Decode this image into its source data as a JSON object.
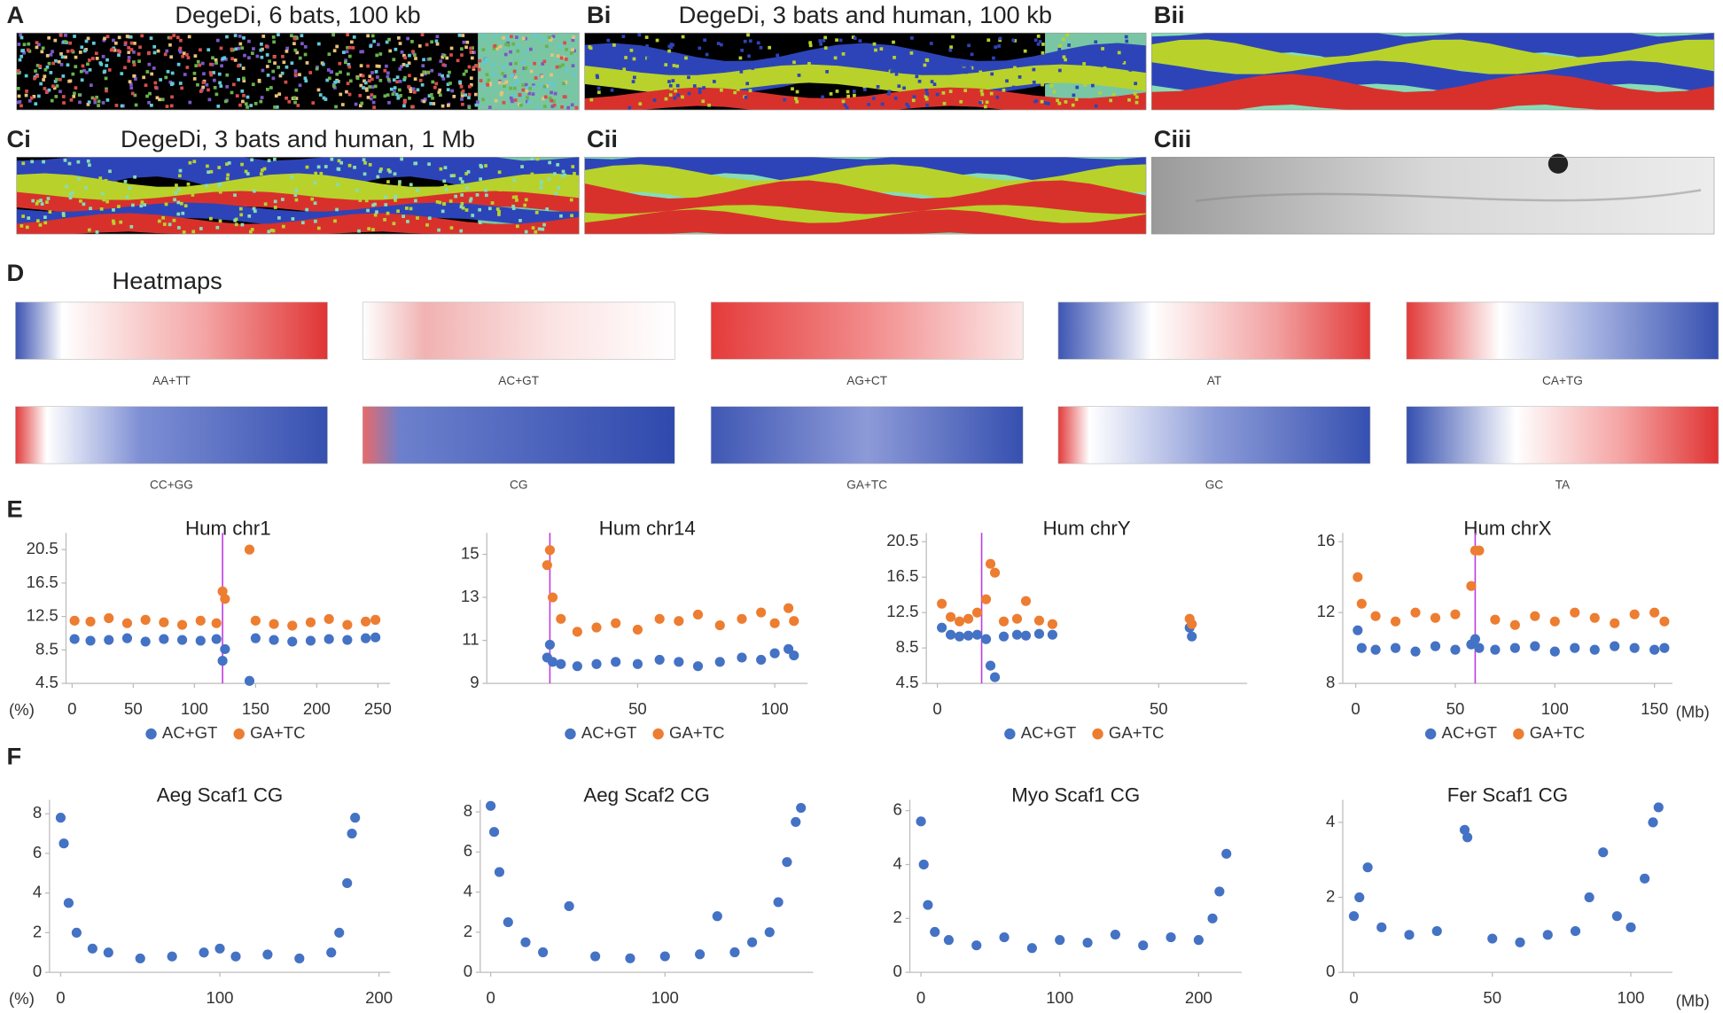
{
  "panels": [
    {
      "letter": "A",
      "title": "DegeDi, 6 bats, 100 kb"
    },
    {
      "letter": "Bi",
      "title": "DegeDi, 3 bats and human, 100 kb"
    },
    {
      "letter": "Bii"
    },
    {
      "letter": "Ci",
      "title": "DegeDi, 3 bats and human, 1 Mb"
    },
    {
      "letter": "Cii"
    },
    {
      "letter": "Ciii"
    }
  ],
  "heatmaps": {
    "letter": "D",
    "title": "Heatmaps",
    "labels": [
      "AA+TT",
      "AC+GT",
      "AG+CT",
      "AT",
      "CA+TG",
      "CC+GG",
      "CG",
      "GA+TC",
      "GC",
      "TA"
    ]
  },
  "row_E": {
    "letter": "E",
    "y_unit": "(%)",
    "x_unit": "(Mb)"
  },
  "row_F": {
    "letter": "F",
    "y_unit": "(%)",
    "x_unit": "(Mb)"
  },
  "chart_data": [
    {
      "type": "scatter",
      "title": "Hum chr1",
      "xlim": [
        -5,
        260
      ],
      "ylim": [
        4.5,
        22.5
      ],
      "xticks": [
        0,
        50,
        100,
        150,
        200,
        250
      ],
      "yticks": [
        4.5,
        8.5,
        12.5,
        16.5,
        20.5
      ],
      "marker_x": 123,
      "marker_color": "#c03ce0",
      "x": [
        2,
        15,
        30,
        45,
        60,
        75,
        90,
        105,
        118,
        123,
        125,
        145,
        150,
        165,
        180,
        195,
        210,
        225,
        240,
        248
      ],
      "series": [
        {
          "name": "AC+GT",
          "color": "#4472c4",
          "values": [
            9.8,
            9.6,
            9.7,
            9.9,
            9.5,
            9.8,
            9.7,
            9.6,
            9.8,
            7.2,
            8.6,
            4.8,
            9.9,
            9.7,
            9.5,
            9.6,
            9.8,
            9.7,
            9.9,
            10.0
          ]
        },
        {
          "name": "GA+TC",
          "color": "#ed7d31",
          "values": [
            12.0,
            11.9,
            12.3,
            11.7,
            12.1,
            11.8,
            11.5,
            12.0,
            11.7,
            15.5,
            14.6,
            20.5,
            12.0,
            11.6,
            11.4,
            11.8,
            12.2,
            11.5,
            11.9,
            12.1
          ]
        }
      ]
    },
    {
      "type": "scatter",
      "title": "Hum chr14",
      "xlim": [
        -5,
        112
      ],
      "ylim": [
        9,
        16
      ],
      "xticks": [
        50,
        100
      ],
      "yticks": [
        9,
        11,
        13,
        15
      ],
      "marker_x": 18,
      "marker_color": "#c03ce0",
      "x": [
        17,
        18,
        19,
        22,
        28,
        35,
        42,
        50,
        58,
        65,
        72,
        80,
        88,
        95,
        100,
        105,
        107
      ],
      "series": [
        {
          "name": "AC+GT",
          "color": "#4472c4",
          "values": [
            10.2,
            10.8,
            10.0,
            9.9,
            9.8,
            9.9,
            10.0,
            9.9,
            10.1,
            10.0,
            9.8,
            10.0,
            10.2,
            10.1,
            10.4,
            10.6,
            10.3
          ]
        },
        {
          "name": "GA+TC",
          "color": "#ed7d31",
          "values": [
            14.5,
            15.2,
            13.0,
            12.0,
            11.4,
            11.6,
            11.8,
            11.5,
            12.0,
            11.9,
            12.2,
            11.7,
            12.0,
            12.3,
            11.8,
            12.5,
            11.9
          ]
        }
      ]
    },
    {
      "type": "scatter",
      "title": "Hum chrY",
      "xlim": [
        -2.5,
        70
      ],
      "ylim": [
        4.5,
        21.5
      ],
      "xticks": [
        0,
        50
      ],
      "yticks": [
        4.5,
        8.5,
        12.5,
        16.5,
        20.5
      ],
      "marker_x": 10,
      "marker_color": "#c03ce0",
      "x": [
        1,
        3,
        5,
        7,
        9,
        11,
        12,
        13,
        15,
        18,
        20,
        23,
        26,
        57,
        57.5
      ],
      "series": [
        {
          "name": "AC+GT",
          "color": "#4472c4",
          "values": [
            10.8,
            10.0,
            9.8,
            9.9,
            10.0,
            9.5,
            6.5,
            5.2,
            9.8,
            10.0,
            9.9,
            10.1,
            10.0,
            10.8,
            9.8
          ]
        },
        {
          "name": "GA+TC",
          "color": "#ed7d31",
          "values": [
            13.5,
            12.0,
            11.5,
            11.8,
            12.5,
            14.0,
            18.0,
            17.0,
            11.5,
            11.8,
            13.8,
            11.6,
            11.2,
            11.8,
            11.2
          ]
        }
      ]
    },
    {
      "type": "scatter",
      "title": "Hum chrX",
      "xlim": [
        -6.5,
        159
      ],
      "ylim": [
        8,
        16.5
      ],
      "xticks": [
        0,
        50,
        100,
        150
      ],
      "yticks": [
        8,
        12,
        16
      ],
      "marker_x": 60,
      "marker_color": "#c03ce0",
      "x": [
        1,
        3,
        10,
        20,
        30,
        40,
        50,
        58,
        60,
        62,
        70,
        80,
        90,
        100,
        110,
        120,
        130,
        140,
        150,
        155
      ],
      "series": [
        {
          "name": "AC+GT",
          "color": "#4472c4",
          "values": [
            11.0,
            10.0,
            9.9,
            10.0,
            9.8,
            10.1,
            9.9,
            10.2,
            10.5,
            10.0,
            9.9,
            10.0,
            10.1,
            9.8,
            10.0,
            9.9,
            10.1,
            10.0,
            9.9,
            10.0
          ]
        },
        {
          "name": "GA+TC",
          "color": "#ed7d31",
          "values": [
            14.0,
            12.5,
            11.8,
            11.5,
            12.0,
            11.7,
            11.9,
            13.5,
            15.5,
            15.5,
            11.6,
            11.3,
            11.8,
            11.5,
            12.0,
            11.7,
            11.4,
            11.9,
            12.0,
            11.5
          ]
        }
      ]
    },
    {
      "type": "scatter",
      "title": "Aeg Scaf1 CG",
      "xlim": [
        -7,
        207
      ],
      "ylim": [
        0,
        8.7
      ],
      "xticks": [
        0,
        100,
        200
      ],
      "yticks": [
        0,
        2,
        4,
        6,
        8
      ],
      "color": "#4472c4",
      "x": [
        0,
        2,
        5,
        10,
        20,
        30,
        50,
        70,
        90,
        100,
        110,
        130,
        150,
        170,
        175,
        180,
        183,
        185
      ],
      "values": [
        7.8,
        6.5,
        3.5,
        2.0,
        1.2,
        1.0,
        0.7,
        0.8,
        1.0,
        1.2,
        0.8,
        0.9,
        0.7,
        1.0,
        2.0,
        4.5,
        7.0,
        7.8
      ]
    },
    {
      "type": "scatter",
      "title": "Aeg Scaf2 CG",
      "xlim": [
        -6,
        185
      ],
      "ylim": [
        0,
        8.6
      ],
      "xticks": [
        0,
        100
      ],
      "yticks": [
        0,
        2,
        4,
        6,
        8
      ],
      "color": "#4472c4",
      "x": [
        0,
        2,
        5,
        10,
        20,
        30,
        45,
        60,
        80,
        100,
        120,
        130,
        140,
        150,
        160,
        165,
        170,
        175,
        178
      ],
      "values": [
        8.3,
        7.0,
        5.0,
        2.5,
        1.5,
        1.0,
        3.3,
        0.8,
        0.7,
        0.8,
        0.9,
        2.8,
        1.0,
        1.5,
        2.0,
        3.5,
        5.5,
        7.5,
        8.2
      ]
    },
    {
      "type": "scatter",
      "title": "Myo Scaf1 CG",
      "xlim": [
        -8,
        231
      ],
      "ylim": [
        0,
        6.4
      ],
      "xticks": [
        0,
        100,
        200
      ],
      "yticks": [
        0,
        2,
        4,
        6
      ],
      "color": "#4472c4",
      "x": [
        0,
        2,
        5,
        10,
        20,
        40,
        60,
        80,
        100,
        120,
        140,
        160,
        180,
        200,
        210,
        215,
        220
      ],
      "values": [
        5.6,
        4.0,
        2.5,
        1.5,
        1.2,
        1.0,
        1.3,
        0.9,
        1.2,
        1.1,
        1.4,
        1.0,
        1.3,
        1.2,
        2.0,
        3.0,
        4.4
      ]
    },
    {
      "type": "scatter",
      "title": "Fer Scaf1 CG",
      "xlim": [
        -4,
        115
      ],
      "ylim": [
        0,
        4.6
      ],
      "xticks": [
        0,
        50,
        100
      ],
      "yticks": [
        0,
        2,
        4
      ],
      "color": "#4472c4",
      "x": [
        0,
        2,
        5,
        10,
        20,
        30,
        40,
        41,
        50,
        60,
        70,
        80,
        85,
        90,
        95,
        100,
        105,
        108,
        110
      ],
      "values": [
        1.5,
        2.0,
        2.8,
        1.2,
        1.0,
        1.1,
        3.8,
        3.6,
        0.9,
        0.8,
        1.0,
        1.1,
        2.0,
        3.2,
        1.5,
        1.2,
        2.5,
        4.0,
        4.4
      ]
    }
  ]
}
